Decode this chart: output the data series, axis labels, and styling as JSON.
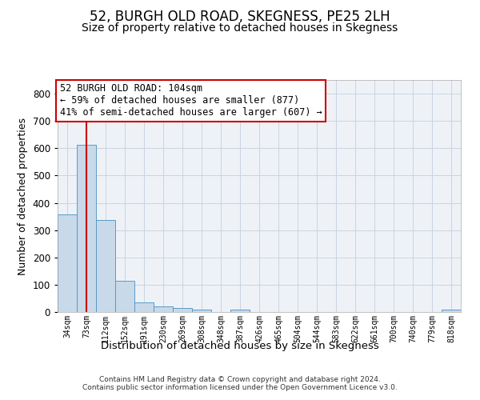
{
  "title": "52, BURGH OLD ROAD, SKEGNESS, PE25 2LH",
  "subtitle": "Size of property relative to detached houses in Skegness",
  "xlabel": "Distribution of detached houses by size in Skegness",
  "ylabel": "Number of detached properties",
  "footer_line1": "Contains HM Land Registry data © Crown copyright and database right 2024.",
  "footer_line2": "Contains public sector information licensed under the Open Government Licence v3.0.",
  "bin_labels": [
    "34sqm",
    "73sqm",
    "112sqm",
    "152sqm",
    "191sqm",
    "230sqm",
    "269sqm",
    "308sqm",
    "348sqm",
    "387sqm",
    "426sqm",
    "465sqm",
    "504sqm",
    "544sqm",
    "583sqm",
    "622sqm",
    "661sqm",
    "700sqm",
    "740sqm",
    "779sqm",
    "818sqm"
  ],
  "bar_heights": [
    358,
    614,
    336,
    114,
    36,
    20,
    15,
    9,
    0,
    8,
    0,
    0,
    0,
    0,
    0,
    0,
    0,
    0,
    0,
    0,
    8
  ],
  "bar_color": "#c8d9ea",
  "bar_edge_color": "#5a9ac8",
  "grid_color": "#c8d4e0",
  "background_color": "#eef2f7",
  "red_line_bin_index": 1,
  "red_line_color": "#cc0000",
  "annotation_line1": "52 BURGH OLD ROAD: 104sqm",
  "annotation_line2": "← 59% of detached houses are smaller (877)",
  "annotation_line3": "41% of semi-detached houses are larger (607) →",
  "annotation_box_color": "#ffffff",
  "annotation_box_edge": "#cc0000",
  "ylim": [
    0,
    850
  ],
  "yticks": [
    0,
    100,
    200,
    300,
    400,
    500,
    600,
    700,
    800
  ],
  "title_fontsize": 12,
  "subtitle_fontsize": 10,
  "annotation_fontsize": 8.5,
  "xlabel_fontsize": 9.5,
  "ylabel_fontsize": 9
}
